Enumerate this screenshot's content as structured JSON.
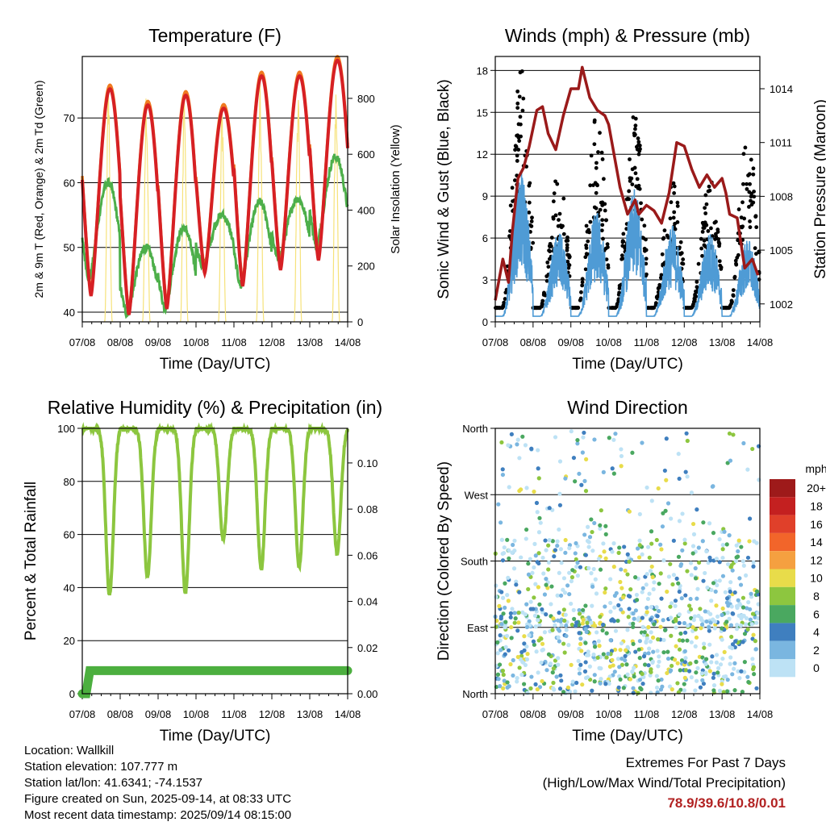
{
  "colors": {
    "red": "#d62024",
    "orange": "#f07a20",
    "green": "#4daf4a",
    "yellow": "#f6e27a",
    "maroon": "#9a1a1a",
    "blue": "#4f9bd5",
    "black": "#000000",
    "rh_green": "#8cc63f"
  },
  "panels": {
    "temperature": {
      "title": "Temperature (F)",
      "ylabel_left": "2m & 9m T (Red, Orange) & 2m Td (Green)",
      "ylabel_right": "Solar Insolation (Yellow)",
      "xlabel": "Time (Day/UTC)"
    },
    "winds": {
      "title": "Winds (mph) & Pressure (mb)",
      "ylabel_left": "Sonic Wind & Gust (Blue, Black)",
      "ylabel_right": "Station Pressure (Maroon)",
      "xlabel": "Time (Day/UTC)"
    },
    "humidity": {
      "title": "Relative Humidity (%) & Precipitation (in)",
      "ylabel_left": "Percent & Total Rainfall",
      "xlabel": "Time (Day/UTC)"
    },
    "direction": {
      "title": "Wind Direction",
      "ylabel_left": "Direction (Colored By Speed)",
      "xlabel": "Time (Day/UTC)",
      "colorbar_title": "mph"
    }
  },
  "chart_data": [
    {
      "type": "line",
      "title": "Temperature (F)",
      "xlabel": "Time (Day/UTC)",
      "ylabel": "2m & 9m T (Red, Orange) & 2m Td (Green)",
      "y2label": "Solar Insolation (Yellow)",
      "x_ticks": [
        "07/08",
        "08/08",
        "09/08",
        "10/08",
        "11/08",
        "12/08",
        "13/08",
        "14/08"
      ],
      "xlim": [
        0,
        7
      ],
      "ylim": [
        38.5,
        79.5
      ],
      "y_ticks": [
        40,
        50,
        60,
        70
      ],
      "y2lim": [
        0,
        950
      ],
      "y2_ticks": [
        0,
        200,
        400,
        600,
        800
      ],
      "grid_y": true,
      "series": [
        {
          "name": "2m T",
          "color": "#d62024",
          "daily_max": [
            74.5,
            72,
            73.5,
            71.5,
            76.5,
            76.5,
            78.9
          ],
          "daily_min": [
            42.5,
            39.6,
            40.5,
            46,
            44,
            46.5,
            48
          ]
        },
        {
          "name": "9m T",
          "color": "#f07a20"
        },
        {
          "name": "2m Td",
          "color": "#4daf4a",
          "daily_max": [
            60,
            50,
            53,
            55,
            57,
            57.5,
            64
          ],
          "daily_min": [
            45,
            39.6,
            40.5,
            47,
            44,
            48,
            50
          ]
        },
        {
          "name": "Solar Insolation",
          "color": "#f6e27a",
          "axis": "right",
          "daily_peak": [
            870,
            860,
            890,
            830,
            860,
            880,
            885
          ]
        }
      ]
    },
    {
      "type": "line",
      "title": "Winds (mph) & Pressure (mb)",
      "xlabel": "Time (Day/UTC)",
      "ylabel": "Sonic Wind & Gust (Blue, Black)",
      "y2label": "Station Pressure (Maroon)",
      "x_ticks": [
        "07/08",
        "08/08",
        "09/08",
        "10/08",
        "11/08",
        "12/08",
        "13/08",
        "14/08"
      ],
      "xlim": [
        0,
        7
      ],
      "ylim": [
        0,
        19
      ],
      "y_ticks": [
        0,
        3,
        6,
        9,
        12,
        15,
        18
      ],
      "y2lim": [
        1001.0,
        1015.8
      ],
      "y2_ticks": [
        1002,
        1005,
        1008,
        1011,
        1014
      ],
      "grid_y": true,
      "series": [
        {
          "name": "Station Pressure",
          "color": "#9a1a1a",
          "axis": "right",
          "x": [
            0,
            0.2,
            0.35,
            0.45,
            0.6,
            0.75,
            0.9,
            1.1,
            1.25,
            1.4,
            1.6,
            1.8,
            2.0,
            2.2,
            2.3,
            2.5,
            2.7,
            2.9,
            3.0,
            3.3,
            3.5,
            3.7,
            3.8,
            4.0,
            4.2,
            4.4,
            4.6,
            4.8,
            5.0,
            5.2,
            5.4,
            5.6,
            5.8,
            6.0,
            6.1,
            6.2,
            6.4,
            6.6,
            6.8,
            6.95
          ],
          "y": [
            1002.2,
            1004.5,
            1003.2,
            1006.0,
            1009.0,
            1009.6,
            1010.8,
            1012.8,
            1013.0,
            1011.5,
            1010.6,
            1012.5,
            1014.0,
            1014.0,
            1015.2,
            1013.5,
            1012.8,
            1012.5,
            1012.0,
            1008.5,
            1007.0,
            1007.8,
            1007.0,
            1007.5,
            1007.2,
            1006.5,
            1008.2,
            1011.0,
            1010.8,
            1009.5,
            1008.5,
            1009.2,
            1008.5,
            1009.0,
            1008.2,
            1007.0,
            1006.8,
            1004.0,
            1004.5,
            1003.6
          ]
        },
        {
          "name": "Sonic Wind",
          "color": "#4f9bd5",
          "daily_peak": [
            10.8,
            6.5,
            8.0,
            9.5,
            7.0,
            6.5,
            6.0
          ]
        },
        {
          "name": "Gust",
          "color": "#000000",
          "daily_peak": [
            18.7,
            11.0,
            15.0,
            16.3,
            10.3,
            10.5,
            13.8
          ]
        }
      ]
    },
    {
      "type": "line",
      "title": "Relative Humidity (%) & Precipitation (in)",
      "xlabel": "Time (Day/UTC)",
      "ylabel": "Percent & Total Rainfall",
      "x_ticks": [
        "07/08",
        "08/08",
        "09/08",
        "10/08",
        "11/08",
        "12/08",
        "13/08",
        "14/08"
      ],
      "xlim": [
        0,
        7
      ],
      "ylim": [
        0,
        100
      ],
      "y_ticks": [
        0,
        20,
        40,
        60,
        80,
        100
      ],
      "y2lim": [
        0,
        0.115
      ],
      "y2_ticks": [
        "0.00",
        "0.02",
        "0.04",
        "0.06",
        "0.08",
        "0.10"
      ],
      "grid_y": true,
      "series": [
        {
          "name": "Relative Humidity",
          "color": "#8cc63f",
          "daily_min": [
            37,
            44,
            38,
            58,
            47,
            48,
            53
          ]
        },
        {
          "name": "Total Precipitation",
          "color": "#4caf3f",
          "axis": "right",
          "x": [
            0,
            0.1,
            0.2,
            7.0
          ],
          "y": [
            0.0,
            0.0,
            0.01,
            0.01
          ]
        }
      ]
    },
    {
      "type": "scatter",
      "title": "Wind Direction",
      "xlabel": "Time (Day/UTC)",
      "ylabel": "Direction (Colored By Speed)",
      "x_ticks": [
        "07/08",
        "08/08",
        "09/08",
        "10/08",
        "11/08",
        "12/08",
        "13/08",
        "14/08"
      ],
      "xlim": [
        0,
        7
      ],
      "ylim": [
        0,
        360
      ],
      "y_ticks": [
        "North",
        "East",
        "South",
        "West",
        "North"
      ],
      "y_tick_values": [
        0,
        90,
        180,
        270,
        360
      ],
      "grid_y": true,
      "colorbar": {
        "title": "mph",
        "labels": [
          "20+",
          "18",
          "16",
          "14",
          "12",
          "10",
          "8",
          "6",
          "4",
          "2",
          "0"
        ],
        "colors": [
          "#9e1a1a",
          "#c42020",
          "#e0402a",
          "#f2652a",
          "#f5a040",
          "#e8dc4a",
          "#8dc63f",
          "#4aa860",
          "#3f7fbf",
          "#7ab6e0",
          "#bde2f5"
        ]
      }
    }
  ],
  "footer": {
    "location": "Location: Wallkill",
    "elevation": "Station elevation: 107.777 m",
    "latlon": "Station lat/lon: 41.6341; -74.1537",
    "created": "Figure created on Sun, 2025-09-14, at 08:33 UTC",
    "recent": "Most recent data timestamp: 2025/09/14 08:15:00"
  },
  "extremes": {
    "title": "Extremes For Past 7 Days",
    "subtitle": "(High/Low/Max Wind/Total Precipitation)",
    "values": "78.9/39.6/10.8/0.01"
  }
}
